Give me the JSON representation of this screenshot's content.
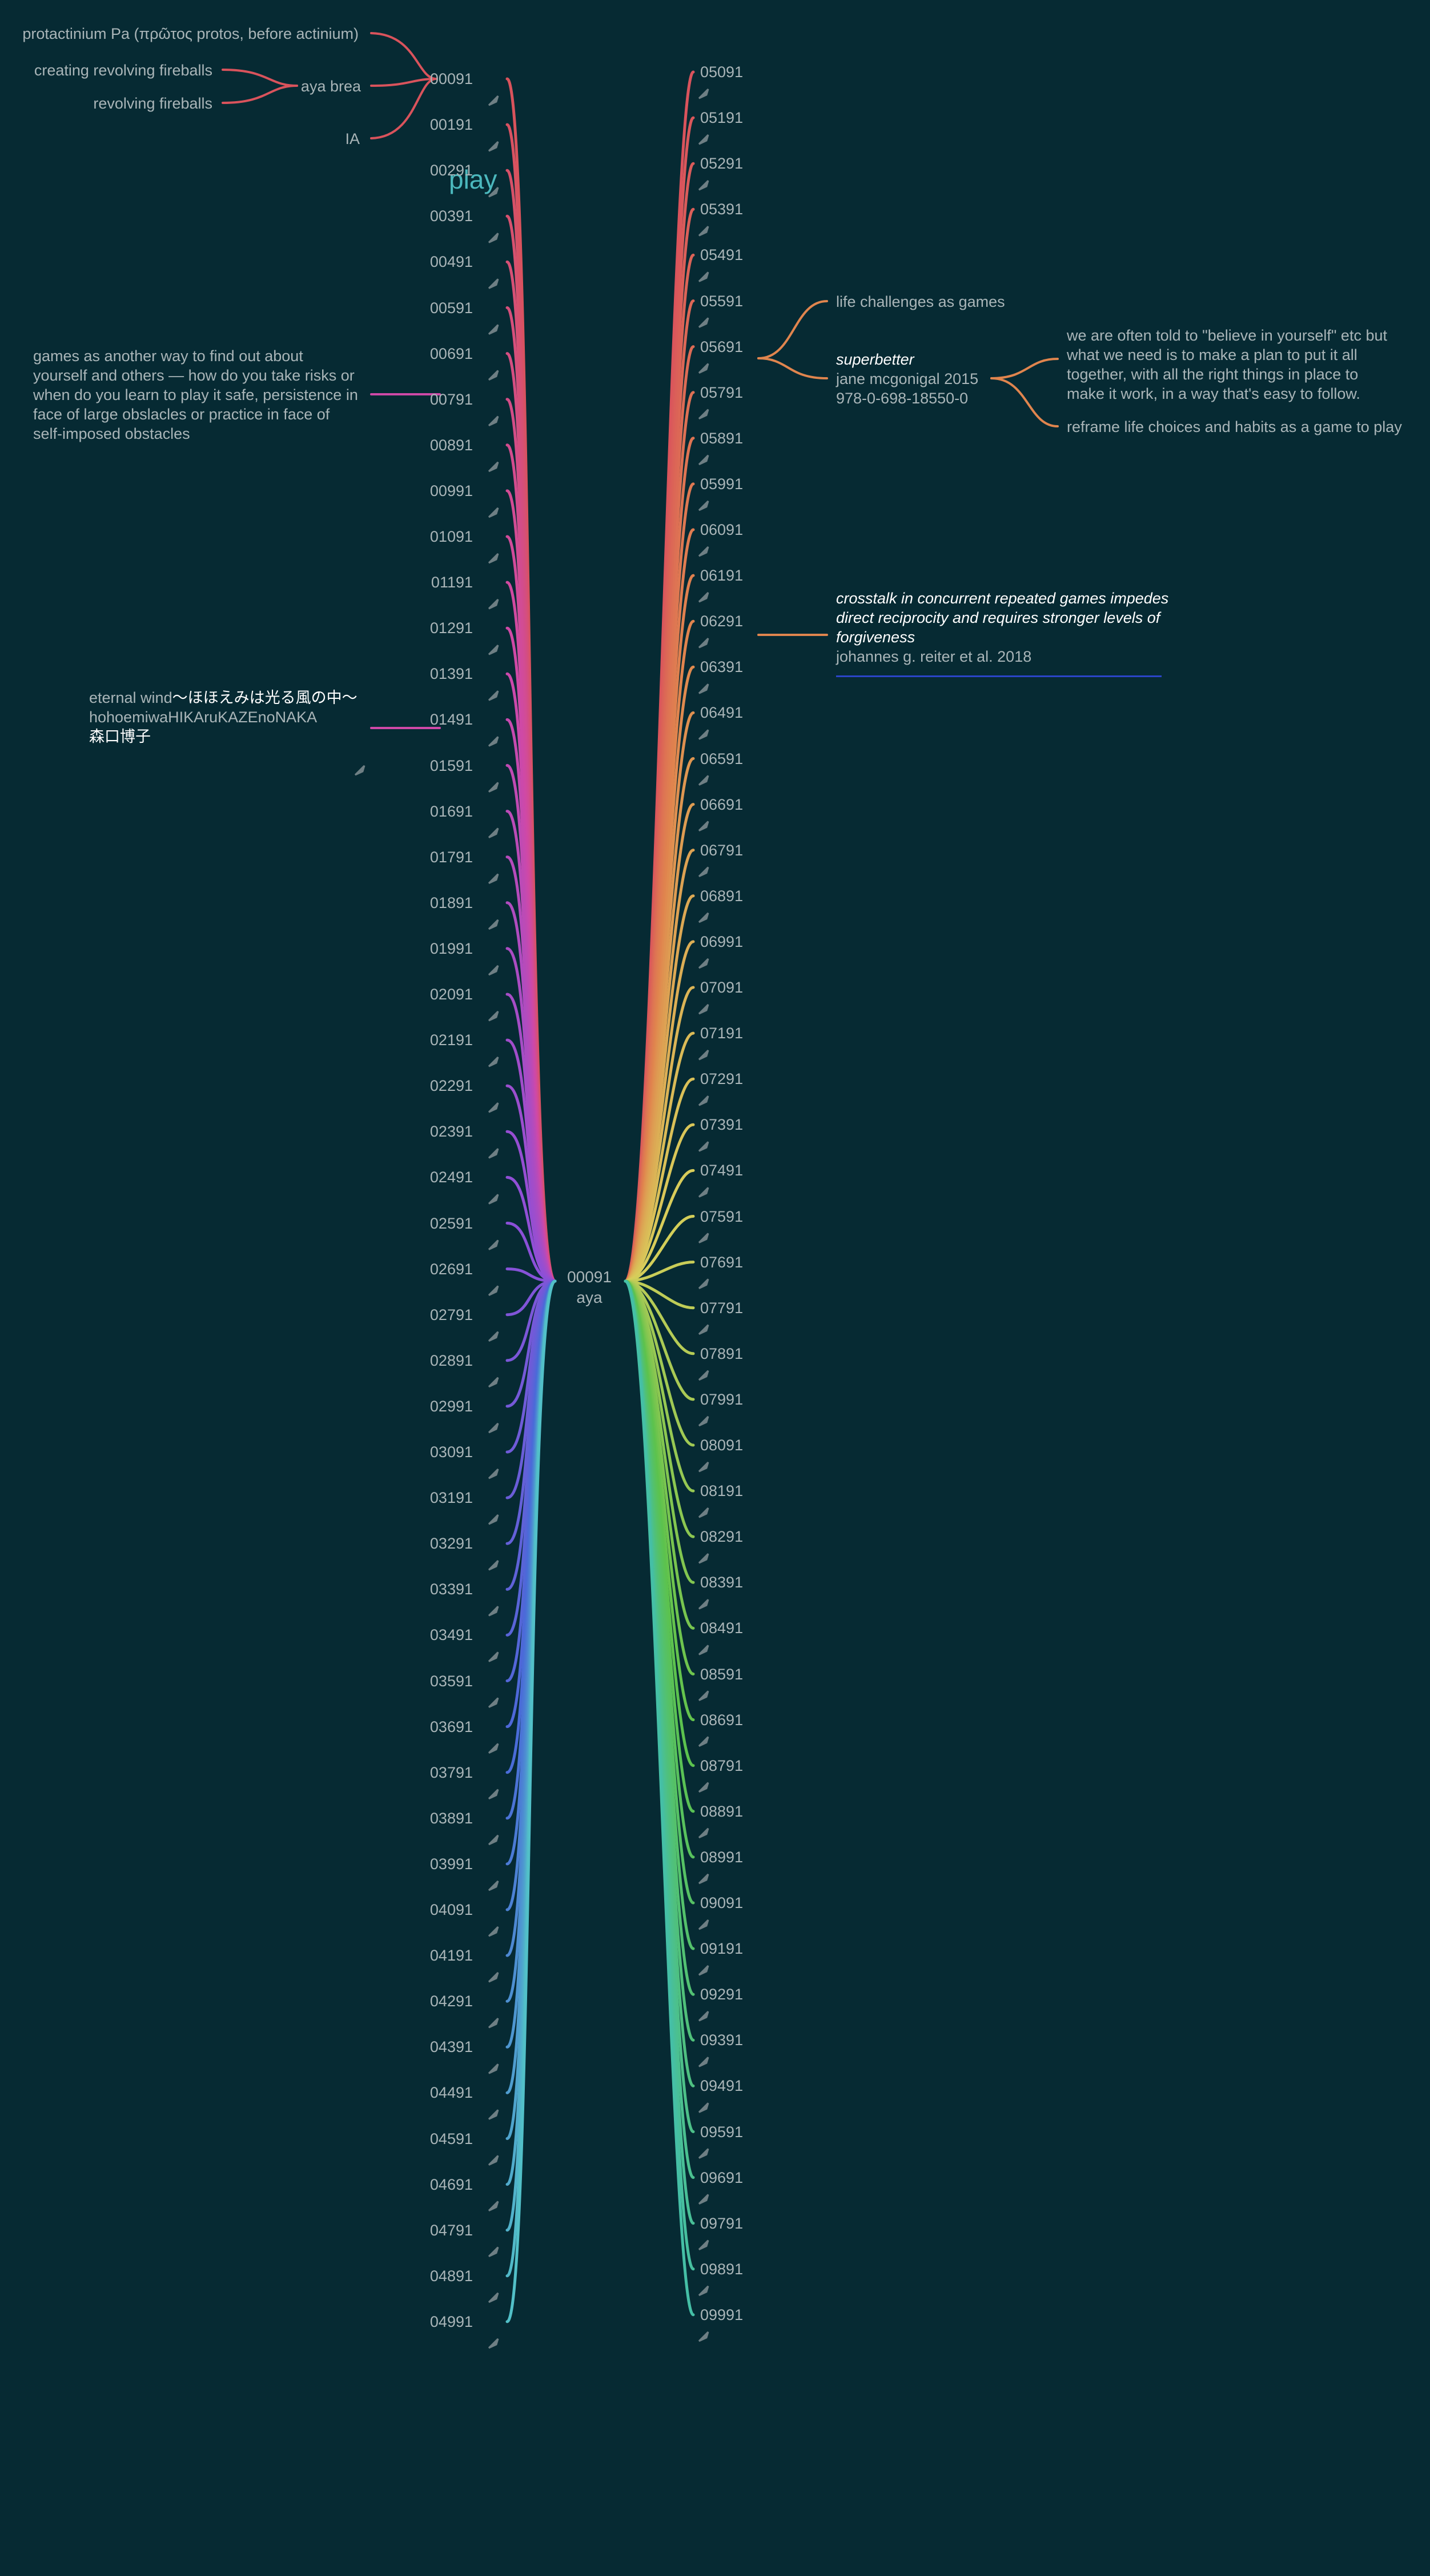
{
  "root": {
    "id": "00091",
    "name": "aya"
  },
  "left_nodes": [
    "00091",
    "00191",
    "00291",
    "00391",
    "00491",
    "00591",
    "00691",
    "00791",
    "00891",
    "00991",
    "01091",
    "01191",
    "01291",
    "01391",
    "01491",
    "01591",
    "01691",
    "01791",
    "01891",
    "01991",
    "02091",
    "02191",
    "02291",
    "02391",
    "02491",
    "02591",
    "02691",
    "02791",
    "02891",
    "02991",
    "03091",
    "03191",
    "03291",
    "03391",
    "03491",
    "03591",
    "03691",
    "03791",
    "03891",
    "03991",
    "04091",
    "04191",
    "04291",
    "04391",
    "04491",
    "04591",
    "04691",
    "04791",
    "04891",
    "04991"
  ],
  "right_nodes": [
    "05091",
    "05191",
    "05291",
    "05391",
    "05491",
    "05591",
    "05691",
    "05791",
    "05891",
    "05991",
    "06091",
    "06191",
    "06291",
    "06391",
    "06491",
    "06591",
    "06691",
    "06791",
    "06891",
    "06991",
    "07091",
    "07191",
    "07291",
    "07391",
    "07491",
    "07591",
    "07691",
    "07791",
    "07891",
    "07991",
    "08091",
    "08191",
    "08291",
    "08391",
    "08491",
    "08591",
    "08691",
    "08791",
    "08891",
    "08991",
    "09091",
    "09191",
    "09291",
    "09391",
    "09491",
    "09591",
    "09691",
    "09791",
    "09891",
    "09991"
  ],
  "play_label": "play",
  "n00091": {
    "protactinium": "protactinium Pa (πρῶτος protos, before actinium)",
    "aya_brea": "aya brea",
    "creating_fireballs": "creating revolving fireballs",
    "revolving_fireballs": "revolving fireballs",
    "ia": "IA"
  },
  "n00491_note": "games as another way to find out about yourself and others — how do you take risks or when do you learn to play it safe, persistence in face of large obslacles or practice in face of self-imposed obstacles",
  "n01091": {
    "line1_prefix": "eternal wind",
    "line1_jp": "〜ほほえみは光る風の中〜",
    "line2": "hohoemiwaHIKAruKAZEnoNAKA",
    "line3": "森口博子"
  },
  "n05591": {
    "life_challenges": "life challenges as games",
    "title": "superbetter",
    "author": "jane mcgonigal 2015",
    "isbn": "978-0-698-18550-0",
    "believe_note": "we are often told to \"believe in yourself\" etc but what we need is to make a plan to put it all together, with all the right things in place to make it work, in a way that's easy to follow.",
    "reframe": "reframe life choices and habits as a game to play"
  },
  "n05991": {
    "title": "crosstalk in concurrent repeated games impedes direct reciprocity and requires stronger levels of forgiveness",
    "authors": "johannes g. reiter et al. 2018"
  },
  "colors": {
    "background": "#062a33",
    "label": "#a9b5b8",
    "arrow": "#6e7f84",
    "play": "#4bb8bd",
    "link": "#2b45c8",
    "red": "#d9535c",
    "magenta": "#cf49a8",
    "purple": "#8e4fd8",
    "blue": "#4a6ad8",
    "cyan": "#52c0c8",
    "orange": "#e0854e",
    "yellow": "#d8cf5a",
    "green": "#5cc24c",
    "teal": "#45bfa6"
  }
}
